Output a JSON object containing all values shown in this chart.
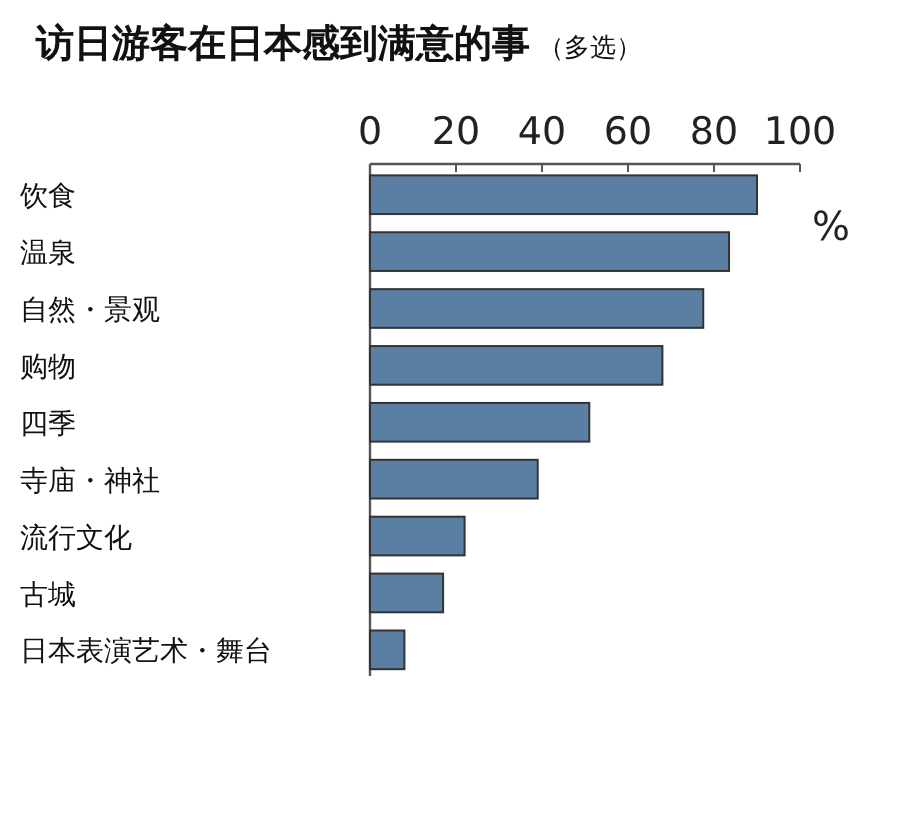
{
  "chart_data": {
    "type": "bar",
    "orientation": "horizontal",
    "title": "访日游客在日本感到满意的事",
    "subtitle": "（多选）",
    "xlabel": "%",
    "categories": [
      "饮食",
      "温泉",
      "自然・景观",
      "购物",
      "四季",
      "寺庙・神社",
      "流行文化",
      "古城",
      "日本表演艺术・舞台"
    ],
    "values": [
      90,
      83.5,
      77.5,
      68,
      51,
      39,
      22,
      17,
      8
    ],
    "color": "#5b7fa3",
    "xlim": [
      0,
      100
    ],
    "xticks": [
      0,
      20,
      40,
      60,
      80,
      100
    ],
    "grid": false
  }
}
